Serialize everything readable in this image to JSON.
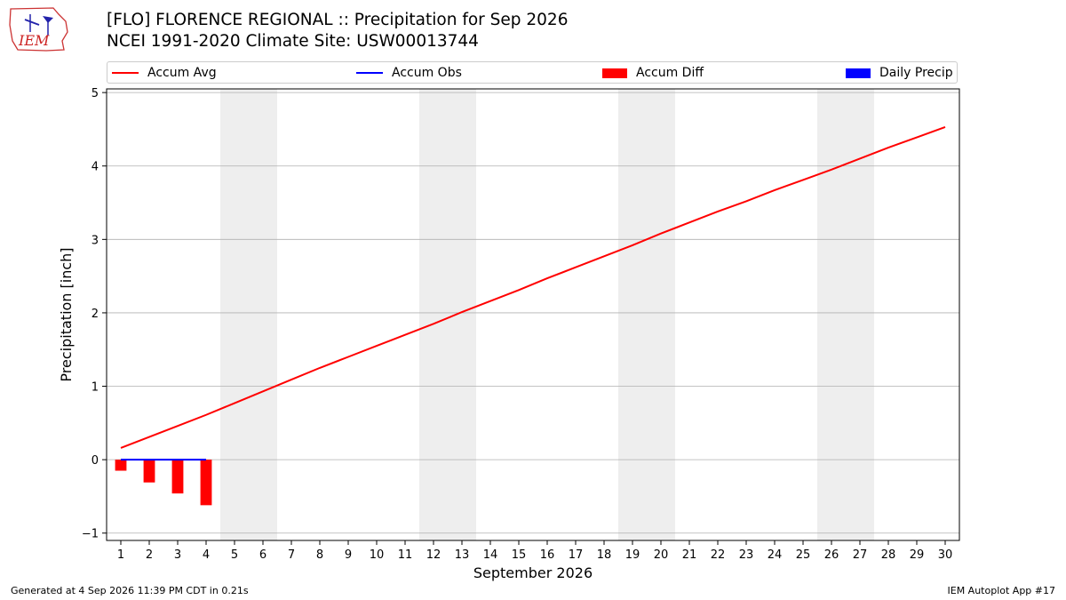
{
  "header": {
    "title_line1": "[FLO] FLORENCE REGIONAL :: Precipitation for Sep 2026",
    "title_line2": "NCEI 1991-2020 Climate Site: USW00013744",
    "logo_text": "IEM"
  },
  "footer": {
    "generated": "Generated at 4 Sep 2026 11:39 PM CDT in 0.21s",
    "app": "IEM Autoplot App #17"
  },
  "colors": {
    "accum_avg": "#ff0000",
    "accum_obs": "#0000ff",
    "accum_diff": "#ff0000",
    "daily_precip": "#0000ff",
    "weekend_shade": "#eeeeee",
    "grid": "#b0b0b0"
  },
  "chart_data": {
    "type": "line",
    "title": "[FLO] FLORENCE REGIONAL :: Precipitation for Sep 2026",
    "subtitle": "NCEI 1991-2020 Climate Site: USW00013744",
    "xlabel": "September 2026",
    "ylabel": "Precipitation [inch]",
    "x": [
      1,
      2,
      3,
      4,
      5,
      6,
      7,
      8,
      9,
      10,
      11,
      12,
      13,
      14,
      15,
      16,
      17,
      18,
      19,
      20,
      21,
      22,
      23,
      24,
      25,
      26,
      27,
      28,
      29,
      30
    ],
    "x_tick_labels": [
      "1",
      "2",
      "3",
      "4",
      "5",
      "6",
      "7",
      "8",
      "9",
      "10",
      "11",
      "12",
      "13",
      "14",
      "15",
      "16",
      "17",
      "18",
      "19",
      "20",
      "21",
      "22",
      "23",
      "24",
      "25",
      "26",
      "27",
      "28",
      "29",
      "30"
    ],
    "xlim": [
      0.5,
      30.5
    ],
    "ylim": [
      -1.1,
      5.05
    ],
    "y_ticks": [
      -1,
      0,
      1,
      2,
      3,
      4,
      5
    ],
    "y_tick_labels": [
      "−1",
      "0",
      "1",
      "2",
      "3",
      "4",
      "5"
    ],
    "grid": "y",
    "legend": "top",
    "weekend_shading": [
      [
        4.5,
        6.5
      ],
      [
        11.5,
        13.5
      ],
      [
        18.5,
        20.5
      ],
      [
        25.5,
        27.5
      ]
    ],
    "series": [
      {
        "name": "Accum Avg",
        "kind": "line",
        "values": [
          0.16,
          0.31,
          0.46,
          0.61,
          0.77,
          0.93,
          1.09,
          1.25,
          1.4,
          1.55,
          1.7,
          1.85,
          2.01,
          2.16,
          2.31,
          2.47,
          2.62,
          2.77,
          2.92,
          3.08,
          3.23,
          3.38,
          3.52,
          3.67,
          3.81,
          3.95,
          4.1,
          4.25,
          4.39,
          4.53
        ]
      },
      {
        "name": "Accum Obs",
        "kind": "line",
        "x": [
          1,
          2,
          3,
          4
        ],
        "values": [
          0,
          0,
          0,
          0
        ]
      },
      {
        "name": "Accum Diff",
        "kind": "bar",
        "x": [
          1,
          2,
          3,
          4
        ],
        "values": [
          -0.15,
          -0.31,
          -0.46,
          -0.62
        ]
      },
      {
        "name": "Daily Precip",
        "kind": "bar",
        "x": [
          1,
          2,
          3,
          4
        ],
        "values": [
          0,
          0,
          0,
          0
        ]
      }
    ]
  }
}
